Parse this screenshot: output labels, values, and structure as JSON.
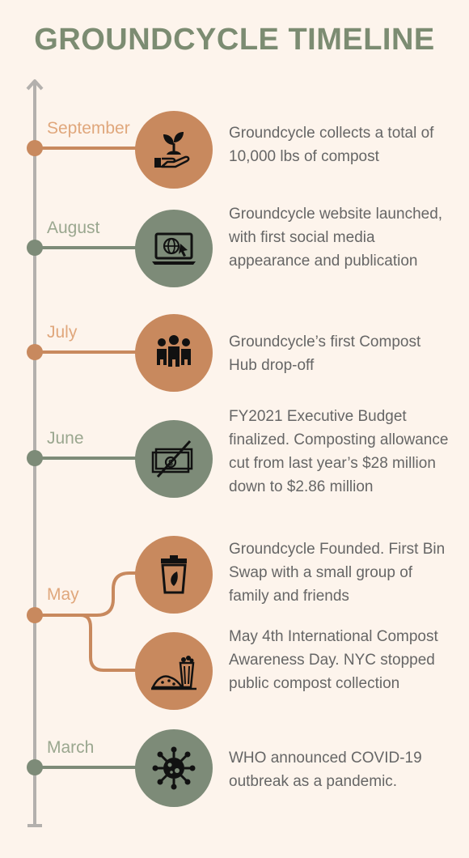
{
  "title": "GROUNDCYCLE TIMELINE",
  "colors": {
    "orange": "#c8895e",
    "orange_text": "#e0a77c",
    "green": "#7d8b78",
    "green_text": "#9aa78f",
    "axis": "#b3b0ad"
  },
  "events": [
    {
      "month": "September",
      "description": "Groundcycle collects a total of 10,000 lbs of compost",
      "icon": "seedling-hand-icon"
    },
    {
      "month": "August",
      "description": "Groundcycle website launched, with first social media appearance and publication",
      "icon": "laptop-globe-icon"
    },
    {
      "month": "July",
      "description": "Groundcycle’s first Compost Hub drop-off",
      "icon": "group-people-icon"
    },
    {
      "month": "June",
      "description": "FY2021 Executive Budget finalized. Composting allowance cut from last year’s $28 million down to $2.86 million",
      "icon": "money-crossed-icon"
    },
    {
      "month": "May",
      "description": "Groundcycle Founded. First Bin Swap with a small group of family and friends",
      "icon": "compost-bin-icon"
    },
    {
      "month": "",
      "description": "May 4th International Compost Awareness Day. NYC stopped public compost collection",
      "icon": "compost-pile-icon"
    },
    {
      "month": "March",
      "description": "WHO announced COVID-19 outbreak as a pandemic.",
      "icon": "virus-icon"
    }
  ]
}
